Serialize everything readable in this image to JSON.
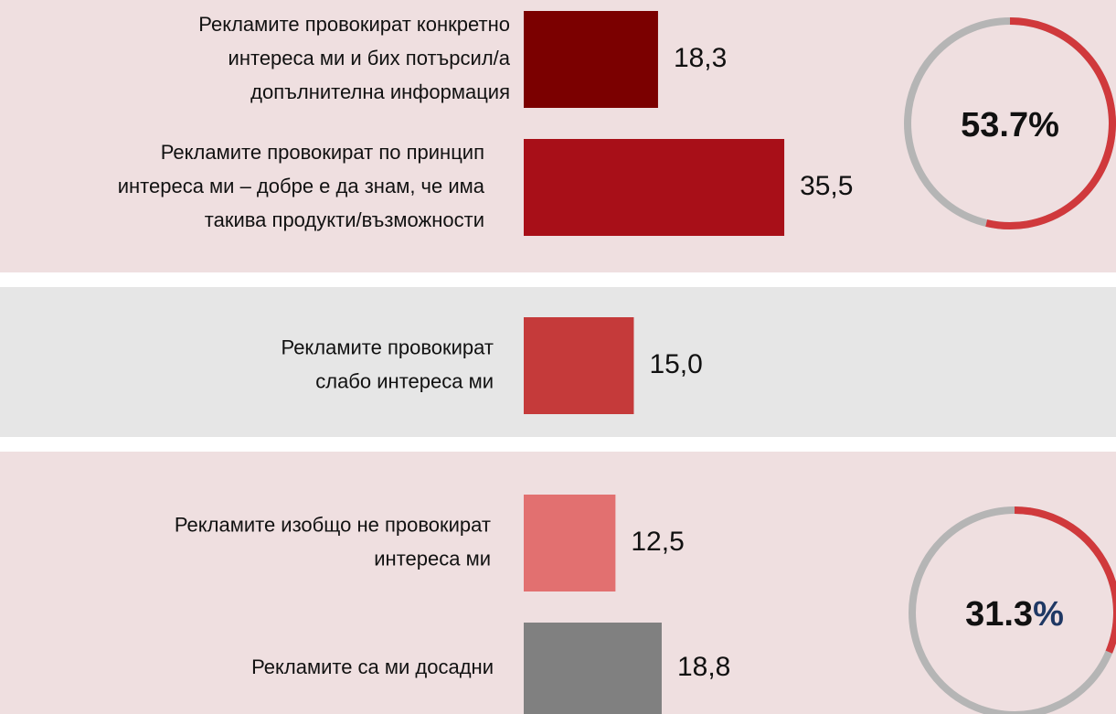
{
  "chart_data": {
    "type": "bar",
    "orientation": "horizontal",
    "categories": [
      [
        "Рекламите провокират конкретно",
        "интереса ми и бих потърсил/а",
        "допълнителна информация"
      ],
      [
        "Рекламите провокират по принцип",
        "интереса ми – добре е да знам, че има",
        "такива продукти/възможности"
      ],
      [
        "Рекламите провокират",
        "слабо интереса ми"
      ],
      [
        "Рекламите изобщо не провокират",
        "интереса ми"
      ],
      [
        "Рекламите са ми досадни"
      ]
    ],
    "values": [
      18.3,
      35.5,
      15.0,
      12.5,
      18.8
    ],
    "value_labels": [
      "18,3",
      "35,5",
      "15,0",
      "12,5",
      "18,8"
    ],
    "colors": [
      "#7b0000",
      "#a80f18",
      "#c53a3a",
      "#e27070",
      "#808080"
    ],
    "rings": [
      {
        "value": 53.7,
        "label": "53.7%"
      },
      {
        "value": 31.3,
        "label": "31.3%",
        "suffix_color": "#1f3864"
      }
    ],
    "ring_color": "#d0393c",
    "ring_track_color": "#b5b5b5"
  }
}
